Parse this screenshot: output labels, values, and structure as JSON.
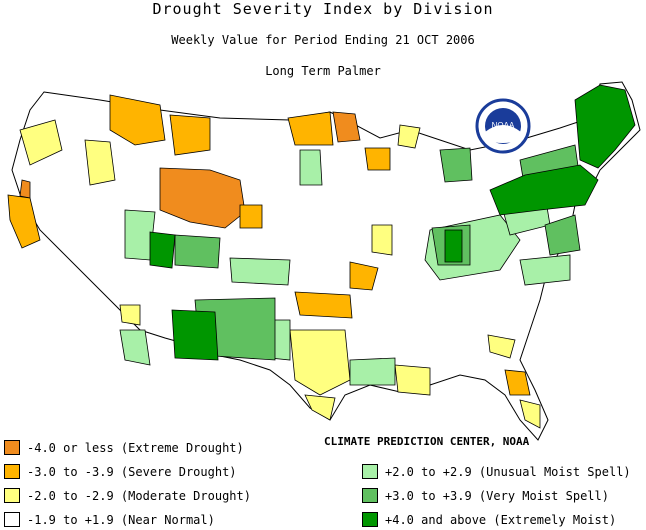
{
  "title": "Drought Severity Index by Division",
  "subtitle": "Weekly Value for Period Ending 21 OCT 2006",
  "index_name": "Long Term Palmer",
  "credit": "CLIMATE PREDICTION CENTER, NOAA",
  "logo_text": "NOAA",
  "colors": {
    "extreme_drought": "#f08c1e",
    "severe_drought": "#ffb400",
    "moderate_drought": "#ffff80",
    "near_normal": "#ffffff",
    "unusual_moist": "#a8f0a8",
    "very_moist": "#60c060",
    "extremely_moist": "#009600",
    "border": "#000000"
  },
  "legend_left": [
    {
      "label": "-4.0 or less (Extreme Drought)",
      "color": "#f08c1e"
    },
    {
      "label": "-3.0 to -3.9 (Severe Drought)",
      "color": "#ffb400"
    },
    {
      "label": "-2.0 to -2.9 (Moderate Drought)",
      "color": "#ffff80"
    },
    {
      "label": "-1.9 to +1.9 (Near Normal)",
      "color": "#ffffff"
    }
  ],
  "legend_right": [
    {
      "label": "+2.0 to +2.9 (Unusual Moist Spell)",
      "color": "#a8f0a8"
    },
    {
      "label": "+3.0 to +3.9 (Very Moist Spell)",
      "color": "#60c060"
    },
    {
      "label": "+4.0 and above (Extremely Moist)",
      "color": "#009600"
    }
  ]
}
